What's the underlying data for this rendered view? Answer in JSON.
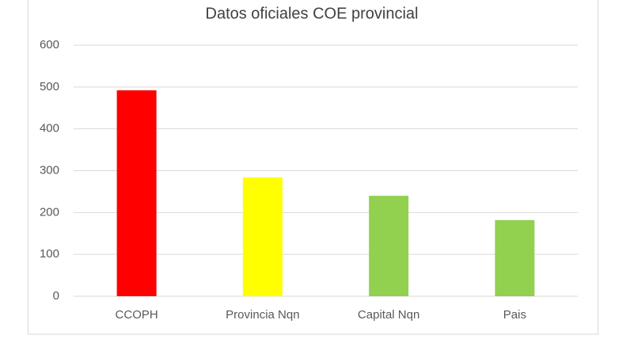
{
  "chart_data": {
    "type": "bar",
    "title": "Datos oficiales COE provincial",
    "categories": [
      "CCOPH",
      "Provincia Nqn",
      "Capital Nqn",
      "Pais"
    ],
    "values": [
      492,
      284,
      240,
      182
    ],
    "colors": [
      "#ff0000",
      "#ffff00",
      "#92d050",
      "#92d050"
    ],
    "ylim": [
      0,
      600
    ],
    "yticks": [
      0,
      100,
      200,
      300,
      400,
      500,
      600
    ],
    "grid": true
  }
}
